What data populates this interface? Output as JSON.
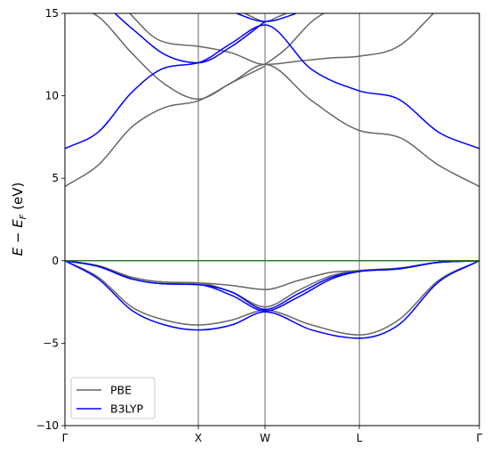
{
  "chart_data": {
    "type": "line",
    "title": "",
    "xlabel": "",
    "ylabel": "E − E",
    "ylabel_sub": "F",
    "ylabel_unit": " (eV)",
    "ylim": [
      -10,
      15
    ],
    "yticks": [
      -10,
      -5,
      0,
      5,
      10,
      15
    ],
    "ytick_labels": [
      "−10",
      "−5",
      "0",
      "5",
      "10",
      "15"
    ],
    "xlim": [
      0,
      6.213
    ],
    "kpoints": [
      {
        "label": "Γ",
        "x": 0
      },
      {
        "label": "X",
        "x": 2.0
      },
      {
        "label": "W",
        "x": 3.0
      },
      {
        "label": "L",
        "x": 4.414
      },
      {
        "label": "Γ",
        "x": 6.213
      }
    ],
    "fermi_level": {
      "y": 0,
      "color": "#2e7d32"
    },
    "grid": false,
    "legend": {
      "placement": "lower-left",
      "entries": [
        "PBE",
        "B3LYP"
      ]
    },
    "series": [
      {
        "name": "PBE",
        "color": "#666666",
        "bands": [
          {
            "x": [
              0,
              0.5,
              1.0,
              1.5,
              2.0,
              2.5,
              3.0,
              3.7,
              4.414,
              5.0,
              5.6,
              6.213
            ],
            "y": [
              4.5,
              5.8,
              8.1,
              9.3,
              9.7,
              10.8,
              11.9,
              9.7,
              7.9,
              7.5,
              5.8,
              4.5
            ]
          },
          {
            "x": [
              0,
              0.5,
              1.0,
              1.5,
              2.0,
              2.5,
              3.0
            ],
            "y": [
              15.6,
              14.8,
              12.6,
              10.7,
              9.8,
              10.8,
              11.8
            ]
          },
          {
            "x": [
              0.9,
              1.4,
              2.0,
              2.5,
              3.0,
              3.5,
              4.0,
              4.414,
              5.0,
              5.6
            ],
            "y": [
              15.3,
              13.4,
              13.0,
              12.6,
              11.9,
              12.1,
              12.3,
              12.4,
              13.0,
              15.3
            ]
          },
          {
            "x": [
              3.0,
              3.3,
              3.7,
              4.0
            ],
            "y": [
              11.9,
              12.8,
              14.5,
              15.3
            ]
          },
          {
            "x": [
              2.6,
              2.8,
              3.0,
              3.2,
              3.5
            ],
            "y": [
              15.2,
              14.8,
              14.5,
              14.8,
              15.3
            ]
          },
          {
            "x": [
              0,
              0.5,
              1.0,
              1.5,
              2.0,
              2.5,
              3.0,
              3.5,
              4.0,
              4.414,
              5.0,
              5.6,
              6.213
            ],
            "y": [
              0,
              -0.3,
              -1.0,
              -1.3,
              -1.35,
              -1.5,
              -1.75,
              -1.2,
              -0.7,
              -0.6,
              -0.45,
              -0.1,
              0
            ]
          },
          {
            "x": [
              0,
              0.5,
              1.0,
              1.5,
              2.0,
              2.5,
              3.0,
              3.5,
              4.0,
              4.414,
              5.0,
              5.6,
              6.213
            ],
            "y": [
              0,
              -0.3,
              -1.0,
              -1.3,
              -1.35,
              -1.9,
              -2.8,
              -1.8,
              -0.9,
              -0.6,
              -0.45,
              -0.1,
              0
            ]
          },
          {
            "x": [
              0,
              0.5,
              1.0,
              1.5,
              2.0,
              2.5,
              3.0,
              3.7,
              4.414,
              5.0,
              5.6,
              6.213
            ],
            "y": [
              0,
              -1.0,
              -2.8,
              -3.6,
              -3.9,
              -3.6,
              -3.0,
              -3.9,
              -4.5,
              -3.6,
              -1.2,
              0
            ]
          }
        ]
      },
      {
        "name": "B3LYP",
        "color": "#0000ff",
        "bands": [
          {
            "x": [
              0,
              0.5,
              1.0,
              1.5,
              2.0,
              2.5,
              3.0,
              3.7,
              4.414,
              5.0,
              5.6,
              6.213
            ],
            "y": [
              6.8,
              7.8,
              10.2,
              11.7,
              12.0,
              13.2,
              14.3,
              11.6,
              10.3,
              9.8,
              7.8,
              6.8
            ]
          },
          {
            "x": [
              0,
              0.5,
              1.0,
              1.5,
              2.0,
              2.5,
              3.0
            ],
            "y": [
              16.6,
              15.8,
              14.1,
              12.5,
              12.0,
              13.0,
              14.5
            ]
          },
          {
            "x": [
              2.5,
              3.0,
              3.4,
              3.8
            ],
            "y": [
              15.1,
              14.5,
              14.9,
              15.6
            ]
          },
          {
            "x": [
              0,
              0.5,
              1.0,
              1.5,
              2.0,
              2.5,
              3.0,
              3.5,
              4.0,
              4.414,
              5.0,
              5.6,
              6.213
            ],
            "y": [
              0,
              -0.35,
              -1.1,
              -1.4,
              -1.45,
              -1.9,
              -2.95,
              -2.0,
              -1.0,
              -0.65,
              -0.5,
              -0.1,
              0
            ]
          },
          {
            "x": [
              0,
              0.5,
              1.0,
              1.5,
              2.0,
              2.5,
              3.0,
              3.5,
              4.0,
              4.414,
              5.0,
              5.6,
              6.213
            ],
            "y": [
              0,
              -0.35,
              -1.1,
              -1.4,
              -1.45,
              -2.1,
              -3.05,
              -2.2,
              -1.1,
              -0.65,
              -0.5,
              -0.1,
              0
            ]
          },
          {
            "x": [
              0,
              0.5,
              1.0,
              1.5,
              2.0,
              2.5,
              3.0,
              3.7,
              4.414,
              5.0,
              5.6,
              6.213
            ],
            "y": [
              0,
              -1.1,
              -3.0,
              -3.9,
              -4.2,
              -3.9,
              -3.1,
              -4.2,
              -4.7,
              -3.9,
              -1.3,
              0
            ]
          }
        ]
      }
    ]
  }
}
